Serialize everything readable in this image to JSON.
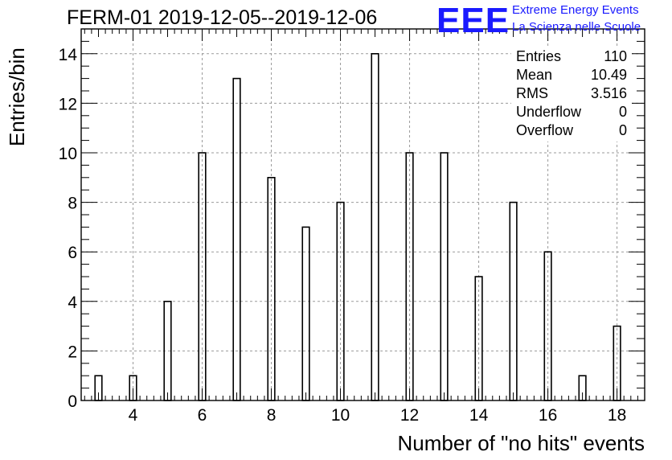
{
  "header": {
    "title": "FERM-01 2019-12-05--2019-12-06",
    "logo_text": "EEE",
    "logo_line1": "Extreme Energy Events",
    "logo_line2": "La Scienza nelle Scuole"
  },
  "stats": [
    {
      "label": "Entries",
      "value": "110"
    },
    {
      "label": "Mean",
      "value": "10.49"
    },
    {
      "label": "RMS",
      "value": "3.516"
    },
    {
      "label": "Underflow",
      "value": "0"
    },
    {
      "label": "Overflow",
      "value": "0"
    }
  ],
  "colors": {
    "accent": "#1a1aff",
    "line": "#000000",
    "grid": "#9a9a9a"
  },
  "chart_data": {
    "type": "bar",
    "title": "FERM-01 2019-12-05--2019-12-06",
    "xlabel": "Number of \"no hits\" events",
    "ylabel": "Entries/bin",
    "xlim": [
      2.5,
      18.8
    ],
    "ylim": [
      0,
      15
    ],
    "grid": true,
    "bin_width": 0.2,
    "xticks": [
      4,
      6,
      8,
      10,
      12,
      14,
      16,
      18
    ],
    "yticks": [
      0,
      2,
      4,
      6,
      8,
      10,
      12,
      14
    ],
    "x": [
      3,
      4,
      5,
      6,
      7,
      8,
      9,
      10,
      11,
      12,
      13,
      14,
      15,
      16,
      17,
      18
    ],
    "values": [
      1,
      1,
      4,
      10,
      13,
      9,
      7,
      8,
      14,
      10,
      10,
      5,
      8,
      6,
      1,
      3
    ]
  }
}
